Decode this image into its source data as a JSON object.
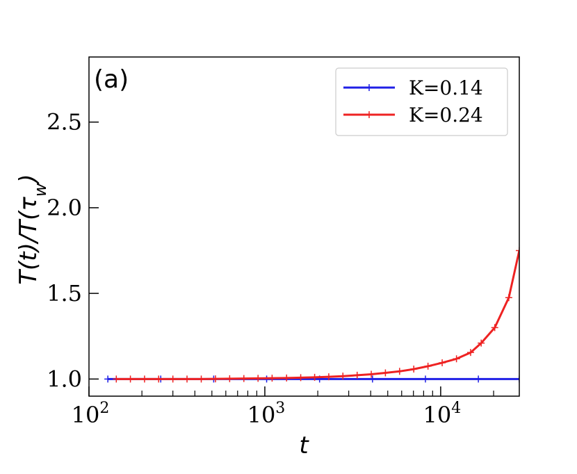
{
  "chart_data": {
    "type": "line",
    "panel_label": "(a)",
    "xlabel": "t",
    "ylabel": "T(t)/T(τw)",
    "x_scale": "log",
    "xlim": [
      100,
      28000
    ],
    "ylim": [
      0.9,
      2.88
    ],
    "x_major_ticks": [
      {
        "value": 100,
        "base": "10",
        "exp": "2"
      },
      {
        "value": 1000,
        "base": "10",
        "exp": "3"
      },
      {
        "value": 10000,
        "base": "10",
        "exp": "4"
      }
    ],
    "y_ticks": [
      {
        "value": 1.0,
        "label": "1.0"
      },
      {
        "value": 1.5,
        "label": "1.5"
      },
      {
        "value": 2.0,
        "label": "2.0"
      },
      {
        "value": 2.5,
        "label": "2.5"
      }
    ],
    "legend_position": "top-right",
    "series": [
      {
        "name": "K=0.14",
        "color": "#1f1fe6",
        "x": [
          128,
          256,
          512,
          1024,
          2048,
          4096,
          8192,
          16384,
          28000
        ],
        "y": [
          1.0,
          1.0,
          1.0,
          1.0,
          1.0,
          1.0,
          1.0,
          1.0,
          1.0
        ]
      },
      {
        "name": "K=0.24",
        "color": "#ee2222",
        "x": [
          143,
          172,
          207,
          249,
          300,
          361,
          435,
          524,
          631,
          760,
          915,
          1100,
          1330,
          1600,
          1920,
          2310,
          2780,
          3350,
          4030,
          4850,
          5840,
          7030,
          8470,
          10200,
          12300,
          14800,
          17000,
          20300,
          24400,
          28000
        ],
        "y": [
          1.0,
          1.0,
          1.0,
          1.0,
          1.0,
          1.0,
          1.0,
          1.001,
          1.002,
          1.003,
          1.004,
          1.005,
          1.006,
          1.008,
          1.01,
          1.013,
          1.017,
          1.022,
          1.028,
          1.036,
          1.045,
          1.058,
          1.075,
          1.095,
          1.118,
          1.155,
          1.21,
          1.3,
          1.475,
          1.75
        ]
      }
    ]
  }
}
